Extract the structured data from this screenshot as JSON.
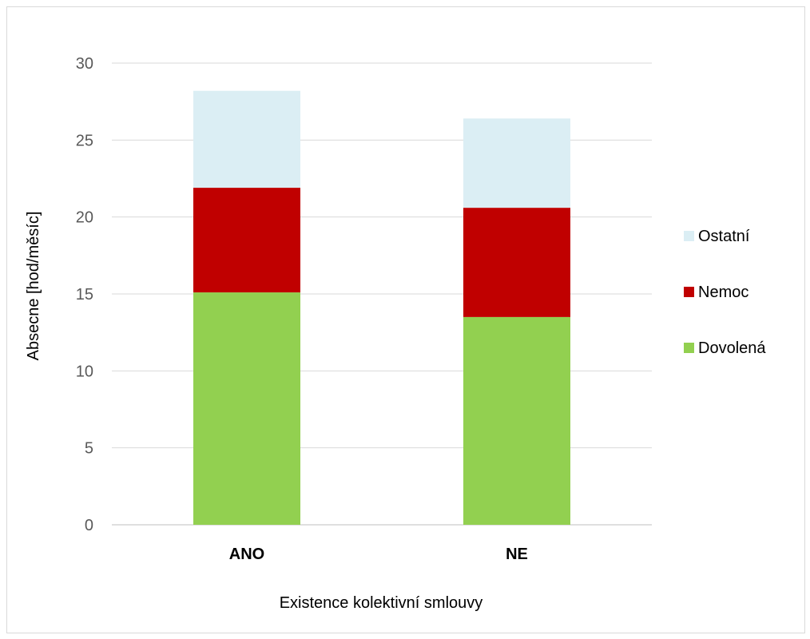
{
  "chart_data": {
    "type": "bar",
    "stacked": true,
    "categories": [
      "ANO",
      "NE"
    ],
    "series": [
      {
        "name": "Dovolená",
        "values": [
          15.1,
          13.5
        ],
        "color": "#92d050"
      },
      {
        "name": "Nemoc",
        "values": [
          6.8,
          7.1
        ],
        "color": "#c00000"
      },
      {
        "name": "Ostatní",
        "values": [
          6.3,
          5.8
        ],
        "color": "#dbeef4"
      }
    ],
    "title": "",
    "xlabel": "Existence kolektivní smlouvy",
    "ylabel": "Absecne [hod/měsíc]",
    "ylim": [
      0,
      30
    ],
    "yticks": [
      0,
      5,
      10,
      15,
      20,
      25,
      30
    ],
    "grid": true,
    "legend": "right",
    "legend_order": [
      "Ostatní",
      "Nemoc",
      "Dovolená"
    ]
  }
}
